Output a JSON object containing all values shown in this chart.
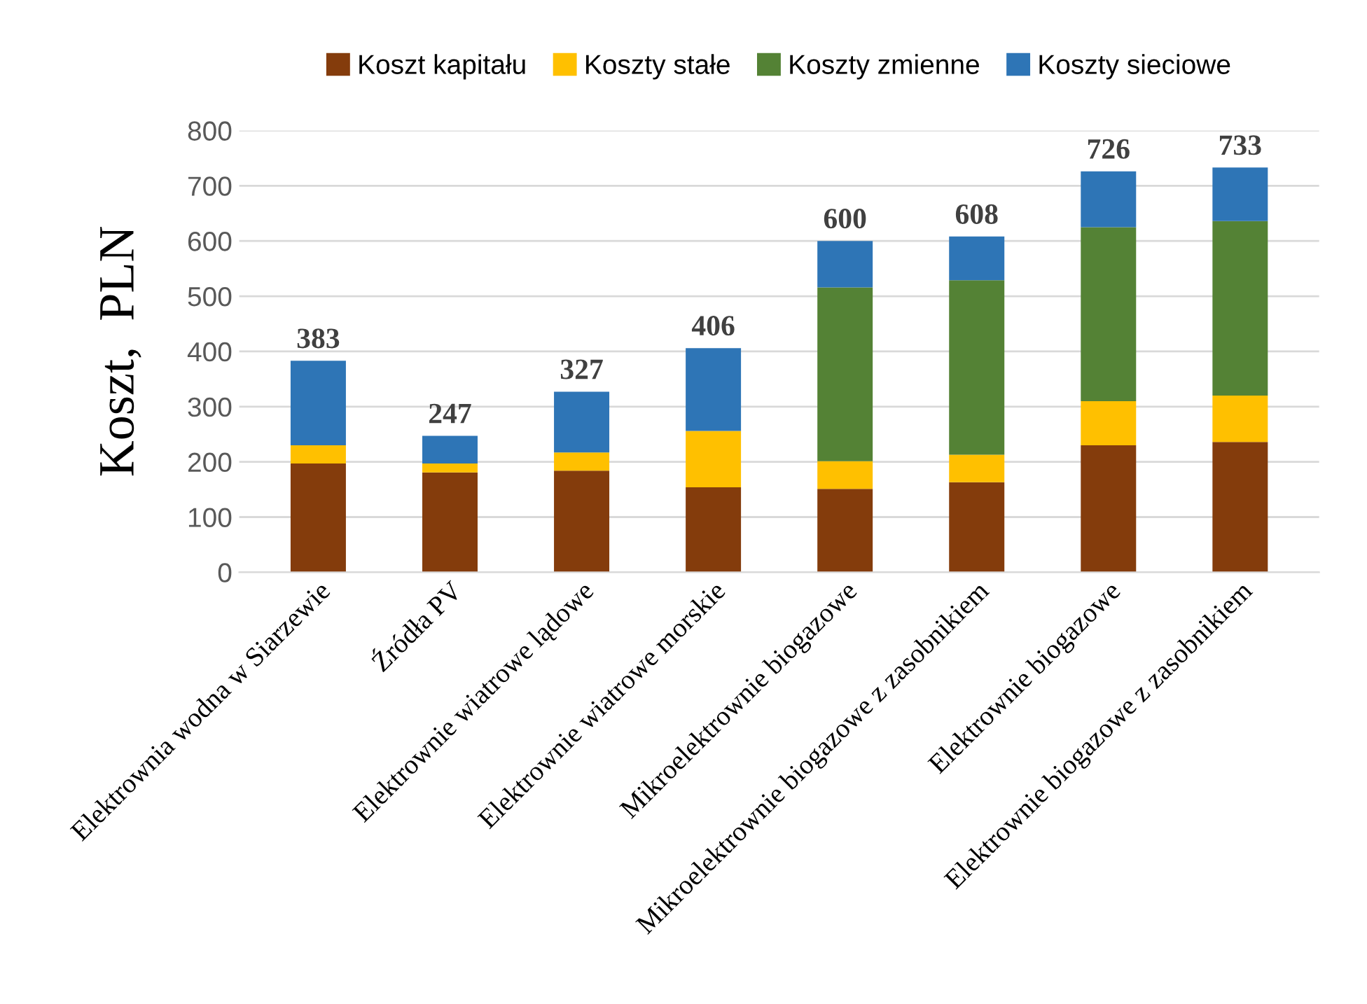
{
  "chart_data": {
    "type": "bar",
    "stacked": true,
    "ylabel": "Koszt,  PLN",
    "categories": [
      "Elektrownia wodna w Siarzewie",
      "Źródła PV",
      "Elektrownie wiatrowe lądowe",
      "Elektrownie wiatrowe morskie",
      "Mikroelektrownie biogazowe",
      "Mikroelektrownie biogazowe z zasobnikiem",
      "Elektrownie biogazowe",
      "Elektrownie biogazowe z zasobnikiem"
    ],
    "series": [
      {
        "name": "Koszt kapitału",
        "color": "#843c0c",
        "values": [
          197,
          181,
          184,
          154,
          151,
          163,
          230,
          236
        ]
      },
      {
        "name": "Koszty stałe",
        "color": "#ffc000",
        "values": [
          33,
          16,
          33,
          102,
          50,
          50,
          80,
          84
        ]
      },
      {
        "name": "Koszty zmienne",
        "color": "#548235",
        "values": [
          0,
          0,
          0,
          0,
          315,
          316,
          315,
          316
        ]
      },
      {
        "name": "Koszty sieciowe",
        "color": "#2e75b6",
        "values": [
          153,
          50,
          110,
          150,
          84,
          79,
          101,
          97
        ]
      }
    ],
    "totals": [
      "383",
      "247",
      "327",
      "406",
      "600",
      "608",
      "726",
      "733"
    ],
    "ylim": [
      0,
      800
    ],
    "yticks": [
      0,
      100,
      200,
      300,
      400,
      500,
      600,
      700,
      800
    ],
    "grid": "y",
    "legend": "top"
  }
}
